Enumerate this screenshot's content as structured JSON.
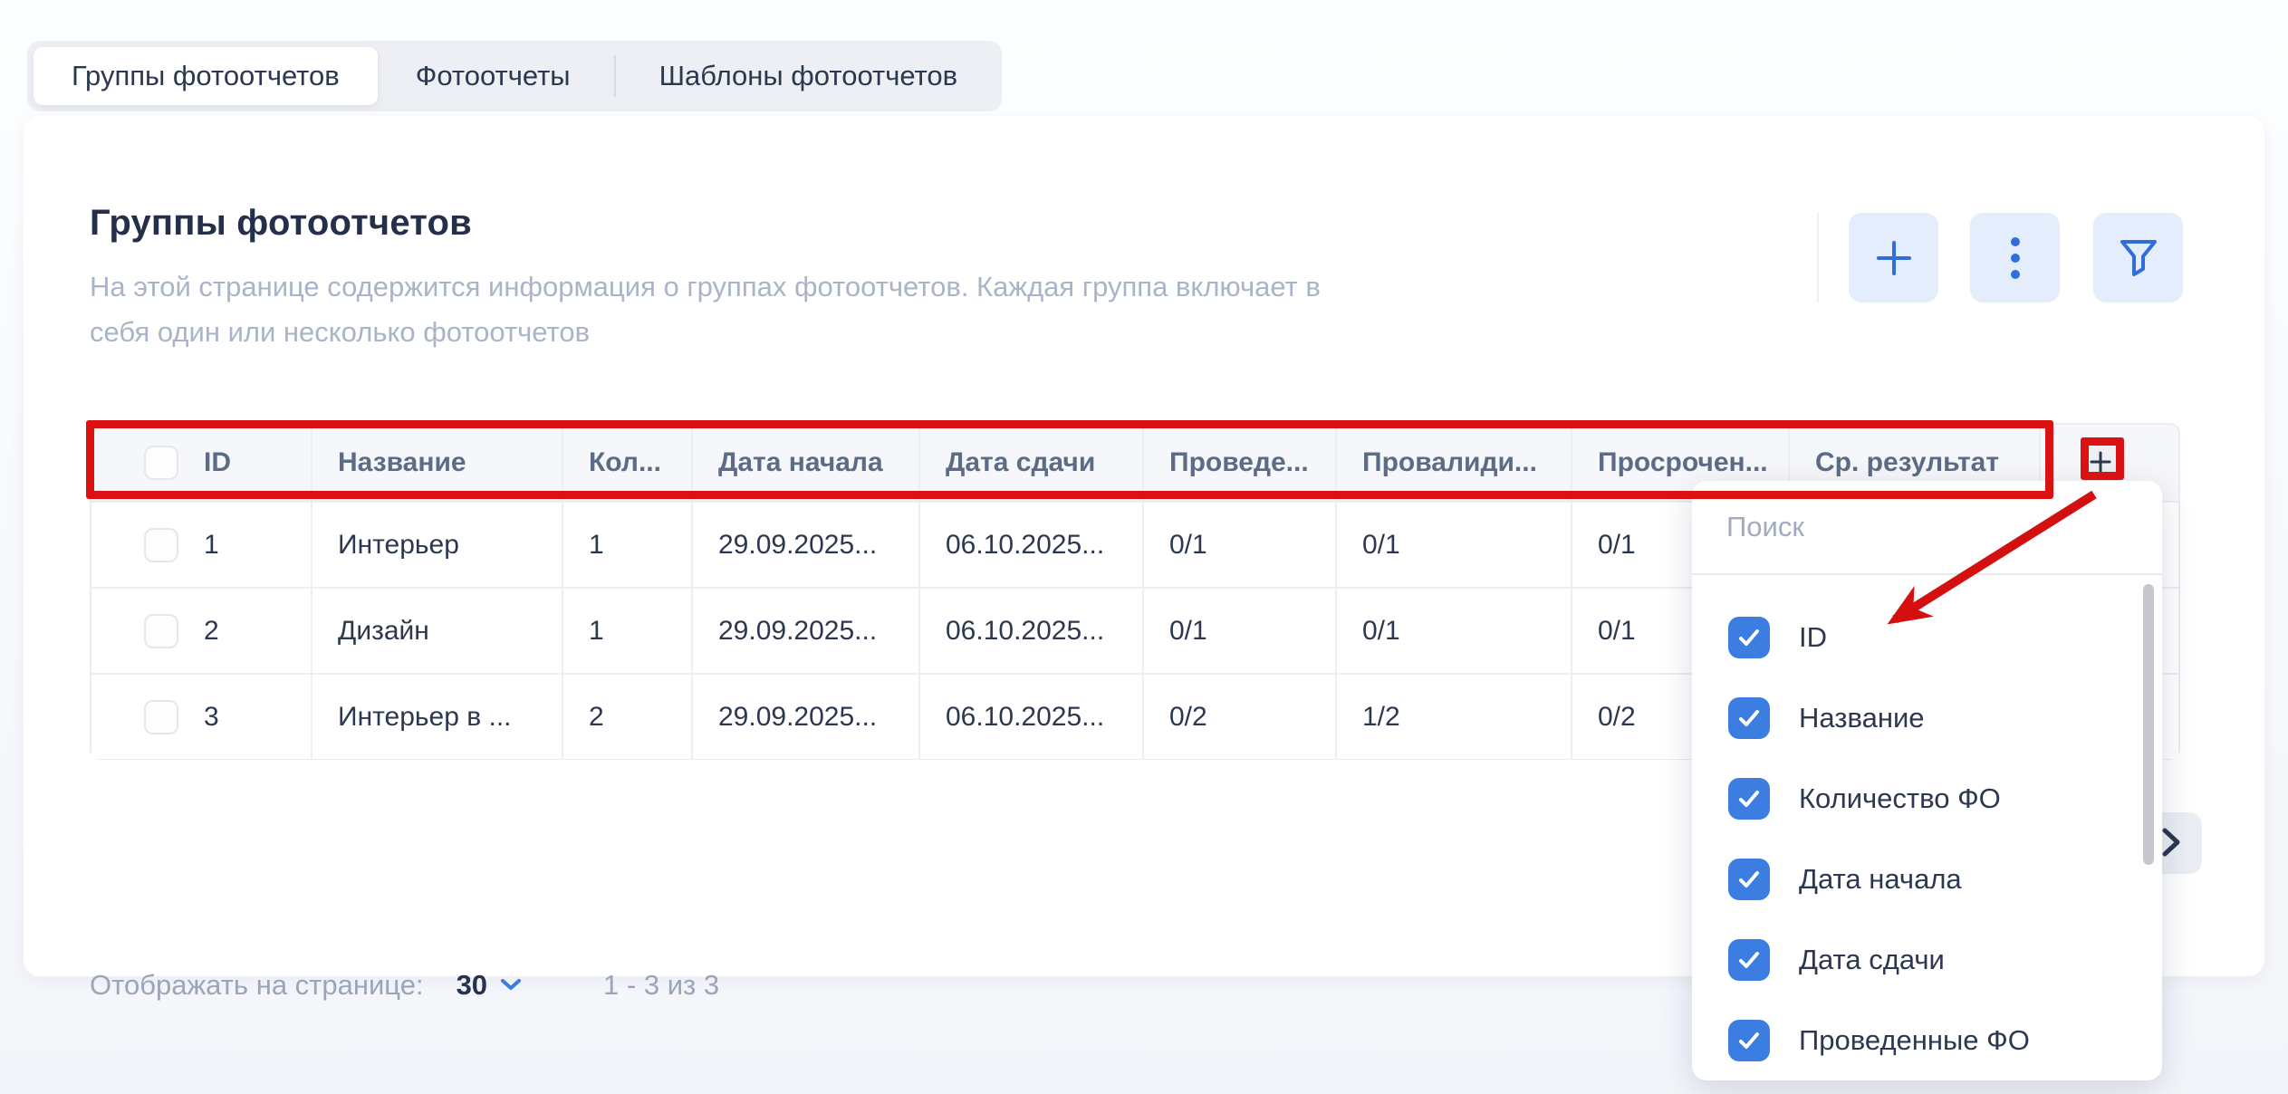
{
  "tabs": [
    {
      "label": "Группы фотоотчетов",
      "active": true
    },
    {
      "label": "Фотоотчеты",
      "active": false
    },
    {
      "label": "Шаблоны фотоотчетов",
      "active": false
    }
  ],
  "page": {
    "title": "Группы фотоотчетов",
    "description": "На этой странице содержится информация о группах фотоотчетов. Каждая группа включает в себя один или несколько фотоотчетов"
  },
  "toolbar": {
    "buttons": [
      {
        "icon": "plus-icon"
      },
      {
        "icon": "kebab-icon"
      },
      {
        "icon": "filter-icon"
      }
    ]
  },
  "table": {
    "headers": [
      "ID",
      "Название",
      "Кол...",
      "Дата начала",
      "Дата сдачи",
      "Проведе...",
      "Провалиди...",
      "Просрочен...",
      "Ср. результат"
    ],
    "add_column_icon": "plus-icon",
    "rows": [
      {
        "id": "1",
        "name": "Интерьер",
        "count": "1",
        "start": "29.09.2025...",
        "due": "06.10.2025...",
        "conducted": "0/1",
        "validated": "0/1",
        "overdue": "0/1"
      },
      {
        "id": "2",
        "name": "Дизайн",
        "count": "1",
        "start": "29.09.2025...",
        "due": "06.10.2025...",
        "conducted": "0/1",
        "validated": "0/1",
        "overdue": "0/1"
      },
      {
        "id": "3",
        "name": "Интерьер в ...",
        "count": "2",
        "start": "29.09.2025...",
        "due": "06.10.2025...",
        "conducted": "0/2",
        "validated": "1/2",
        "overdue": "0/2"
      }
    ]
  },
  "pagination": {
    "label": "Отображать на странице:",
    "page_size": "30",
    "range": "1 - 3 из 3"
  },
  "column_menu": {
    "search_placeholder": "Поиск",
    "options": [
      {
        "label": "ID",
        "checked": true
      },
      {
        "label": "Название",
        "checked": true
      },
      {
        "label": "Количество ФО",
        "checked": true
      },
      {
        "label": "Дата начала",
        "checked": true
      },
      {
        "label": "Дата сдачи",
        "checked": true
      },
      {
        "label": "Проведенные ФО",
        "checked": true
      }
    ]
  },
  "colors": {
    "accent_blue": "#2f6edb",
    "checkbox_blue": "#3b7de0",
    "annotation_red": "#dc1111",
    "text_dark": "#24304a",
    "text_muted": "#a9b4c8"
  }
}
